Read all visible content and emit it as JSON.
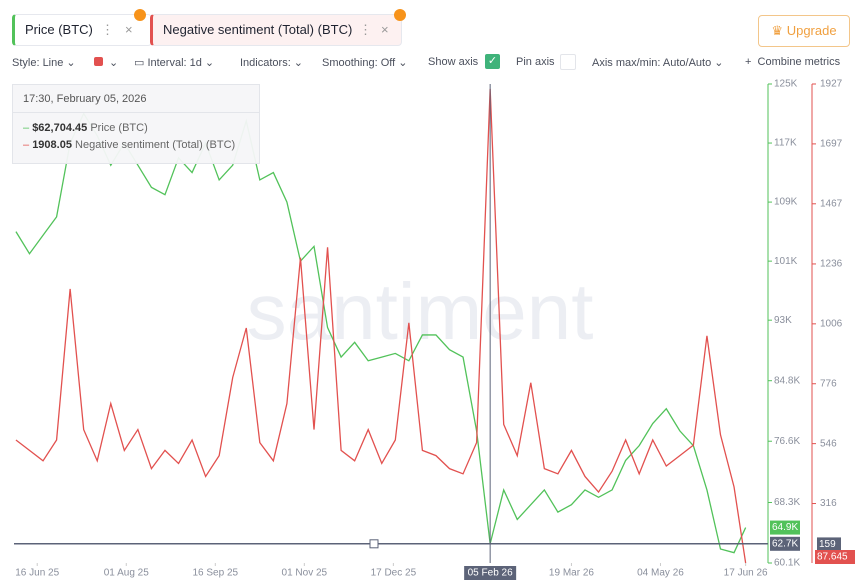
{
  "ui": {
    "upgrade": "Upgrade",
    "style": "Style: Line",
    "interval": "Interval: 1d",
    "indicators": "Indicators:",
    "smoothing": "Smoothing: Off",
    "show_axis": "Show axis",
    "pin_axis": "Pin axis",
    "axis_minmax": "Axis max/min: Auto/Auto",
    "combine": "Combine metrics",
    "watermark": "santiment"
  },
  "chart_data": {
    "type": "line",
    "x": [
      "2025-06-05",
      "2025-06-12",
      "2025-06-19",
      "2025-06-26",
      "2025-07-03",
      "2025-07-10",
      "2025-07-17",
      "2025-07-24",
      "2025-07-31",
      "2025-08-07",
      "2025-08-14",
      "2025-08-21",
      "2025-08-28",
      "2025-09-04",
      "2025-09-11",
      "2025-09-18",
      "2025-09-25",
      "2025-10-02",
      "2025-10-09",
      "2025-10-16",
      "2025-10-23",
      "2025-10-30",
      "2025-11-06",
      "2025-11-13",
      "2025-11-20",
      "2025-11-27",
      "2025-12-04",
      "2025-12-11",
      "2025-12-18",
      "2025-12-25",
      "2026-01-01",
      "2026-01-08",
      "2026-01-15",
      "2026-01-22",
      "2026-01-29",
      "2026-02-05",
      "2026-02-12",
      "2026-02-19",
      "2026-02-26",
      "2026-03-05",
      "2026-03-12",
      "2026-03-19",
      "2026-03-26",
      "2026-04-02",
      "2026-04-09",
      "2026-04-16",
      "2026-04-23",
      "2026-04-30",
      "2026-05-07",
      "2026-05-14",
      "2026-05-21",
      "2026-05-28",
      "2026-06-04",
      "2026-06-11",
      "2026-06-17"
    ],
    "xlim": [
      "2025-06-04",
      "2026-06-27"
    ],
    "xticks": [
      {
        "value": "2025-06-16",
        "label": "16 Jun 25"
      },
      {
        "value": "2025-08-01",
        "label": "01 Aug 25"
      },
      {
        "value": "2025-09-16",
        "label": "16 Sep 25"
      },
      {
        "value": "2025-11-01",
        "label": "01 Nov 25"
      },
      {
        "value": "2025-12-17",
        "label": "17 Dec 25"
      },
      {
        "value": "2026-03-19",
        "label": "19 Mar 26"
      },
      {
        "value": "2026-05-04",
        "label": "04 May 26"
      },
      {
        "value": "2026-06-17",
        "label": "17 Jun 26"
      }
    ],
    "ylim": [
      60100,
      125000
    ],
    "yticks": [
      {
        "value": 125000,
        "label": "125K"
      },
      {
        "value": 117000,
        "label": "117K"
      },
      {
        "value": 109000,
        "label": "109K"
      },
      {
        "value": 101000,
        "label": "101K"
      },
      {
        "value": 93000,
        "label": "93K"
      },
      {
        "value": 84800,
        "label": "84.8K"
      },
      {
        "value": 76600,
        "label": "76.6K"
      },
      {
        "value": 68300,
        "label": "68.3K"
      },
      {
        "value": 60100,
        "label": "60.1K"
      }
    ],
    "y2lim": [
      87.645,
      1927
    ],
    "y2ticks": [
      1927,
      1697,
      1467,
      1236,
      1006,
      776,
      546,
      316
    ],
    "series": [
      {
        "name": "Price (BTC)",
        "color": "#52c25a",
        "values": [
          105000,
          102000,
          104500,
          107000,
          117000,
          121000,
          118000,
          114000,
          117000,
          114000,
          111000,
          110000,
          115000,
          113000,
          117000,
          112000,
          114000,
          120000,
          112000,
          113000,
          109000,
          101000,
          103000,
          92000,
          88000,
          90000,
          87500,
          88000,
          88500,
          87500,
          91000,
          91000,
          89000,
          88000,
          78000,
          62704.45,
          70000,
          66000,
          68000,
          70000,
          67000,
          68000,
          70000,
          69000,
          70000,
          74000,
          76000,
          79000,
          81000,
          78000,
          76000,
          70000,
          62000,
          61500,
          64900
        ],
        "value_labels": [
          null,
          null,
          null,
          null,
          null,
          null,
          null,
          null,
          null,
          null,
          null,
          null,
          null,
          null,
          null,
          null,
          null,
          null,
          null,
          null,
          null,
          null,
          null,
          null,
          null,
          null,
          null,
          null,
          null,
          null,
          null,
          null,
          null,
          null,
          null,
          "$62,704.45",
          null,
          null,
          null,
          null,
          null,
          null,
          null,
          null,
          null,
          null,
          null,
          null,
          null,
          null,
          null,
          null,
          null,
          null,
          "64.9K"
        ]
      },
      {
        "name": "Negative sentiment (Total) (BTC)",
        "color": "#e2514f",
        "axis": "y2",
        "values": [
          560,
          520,
          480,
          560,
          1140,
          600,
          480,
          700,
          520,
          600,
          450,
          520,
          470,
          560,
          420,
          500,
          800,
          990,
          550,
          480,
          700,
          1260,
          600,
          1300,
          520,
          480,
          600,
          470,
          560,
          1010,
          520,
          500,
          450,
          430,
          550,
          1908.05,
          620,
          500,
          780,
          450,
          430,
          520,
          420,
          360,
          440,
          560,
          430,
          560,
          460,
          500,
          540,
          960,
          580,
          380,
          87.645
        ]
      }
    ],
    "crosshair": {
      "x": {
        "value": "2026-02-05",
        "label": "05 Feb 26"
      },
      "y": {
        "value": 62700,
        "label": "62.7K"
      },
      "y2": 159
    },
    "tooltip": {
      "title": "17:30, February 05, 2026"
    }
  }
}
